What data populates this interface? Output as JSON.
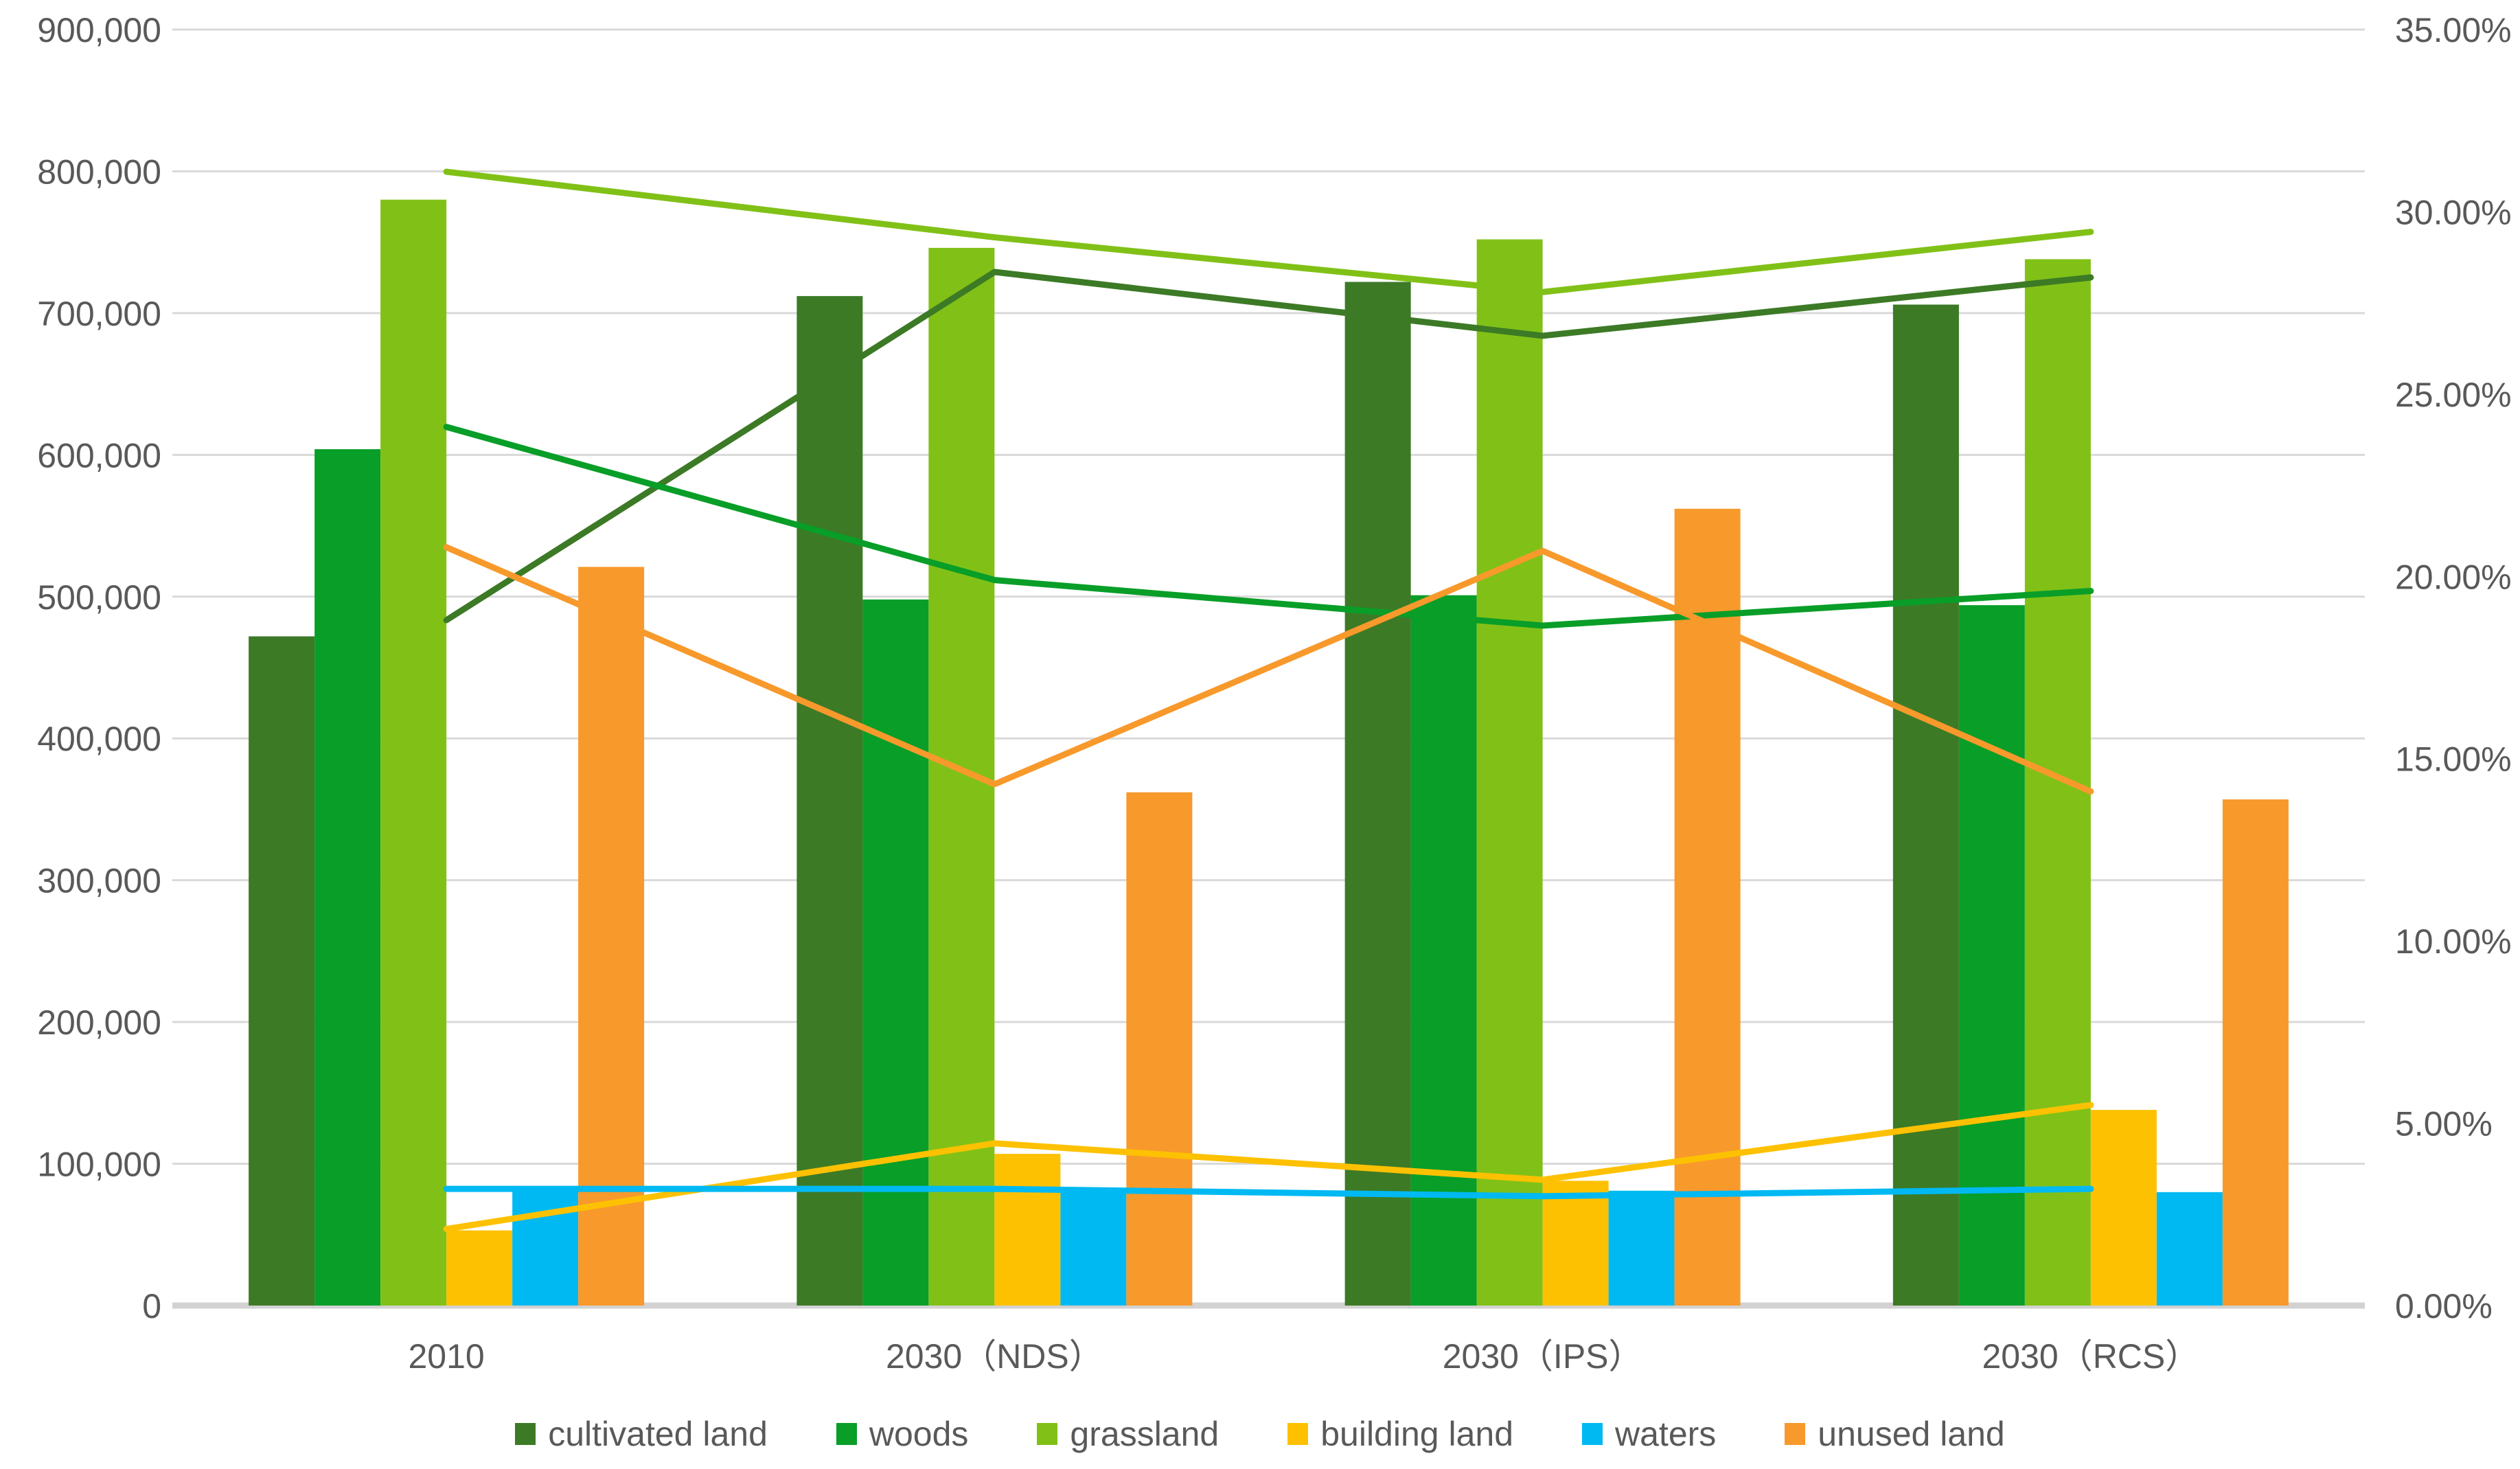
{
  "chart_data": {
    "type": "bar",
    "subtype": "combo-bar-line",
    "title": "",
    "categories": [
      "2010",
      "2030（NDS）",
      "2030（IPS）",
      "2030（RCS）"
    ],
    "bar_series": [
      {
        "name": "cultivated land",
        "color": "#3C7A26",
        "axis": "left",
        "values": [
          472000,
          712000,
          722000,
          706000
        ]
      },
      {
        "name": "woods",
        "color": "#089E28",
        "axis": "left",
        "values": [
          604000,
          498000,
          501000,
          494000
        ]
      },
      {
        "name": "grassland",
        "color": "#81C117",
        "axis": "left",
        "values": [
          780000,
          746000,
          752000,
          738000
        ]
      },
      {
        "name": "building land",
        "color": "#FDC101",
        "axis": "left",
        "values": [
          53000,
          107000,
          88000,
          138000
        ]
      },
      {
        "name": "waters",
        "color": "#00B9F2",
        "axis": "left",
        "values": [
          82000,
          82000,
          81000,
          80000
        ]
      },
      {
        "name": "unused land",
        "color": "#F8992C",
        "axis": "left",
        "values": [
          521000,
          362000,
          562000,
          357000
        ]
      }
    ],
    "line_series": [
      {
        "name": "cultivated land share",
        "color": "#3C7A26",
        "axis": "right",
        "values_pct": [
          18.8,
          28.35,
          26.6,
          28.2
        ]
      },
      {
        "name": "woods share",
        "color": "#089E28",
        "axis": "right",
        "values_pct": [
          24.1,
          19.9,
          18.65,
          19.6
        ]
      },
      {
        "name": "grassland share",
        "color": "#81C117",
        "axis": "right",
        "values_pct": [
          31.1,
          29.3,
          27.8,
          29.45
        ]
      },
      {
        "name": "building land share",
        "color": "#FDC101",
        "axis": "right",
        "values_pct": [
          2.1,
          4.45,
          3.45,
          5.5
        ]
      },
      {
        "name": "waters share",
        "color": "#00B9F2",
        "axis": "right",
        "values_pct": [
          3.2,
          3.2,
          3.0,
          3.2
        ]
      },
      {
        "name": "unused land share",
        "color": "#F8992C",
        "axis": "right",
        "values_pct": [
          20.8,
          14.3,
          20.7,
          14.1
        ]
      }
    ],
    "y_left": {
      "min": 0,
      "max": 900000,
      "tick_step": 100000,
      "ticks": [
        "900,000",
        "800,000",
        "700,000",
        "600,000",
        "500,000",
        "400,000",
        "300,000",
        "200,000",
        "100,000",
        "0"
      ]
    },
    "y_right": {
      "min": 0,
      "max": 35,
      "tick_step": 5,
      "ticks": [
        "35.00%",
        "30.00%",
        "25.00%",
        "20.00%",
        "15.00%",
        "10.00%",
        "5.00%",
        "0.00%"
      ]
    },
    "legend": [
      "cultivated land",
      "woods",
      "grassland",
      "building land",
      "waters",
      "unused land"
    ],
    "legend_position": "bottom",
    "grid": true,
    "gridline_color": "#D9D9D9",
    "axis_line_color": "#D2D2D2",
    "tick_label_color": "#595959"
  }
}
